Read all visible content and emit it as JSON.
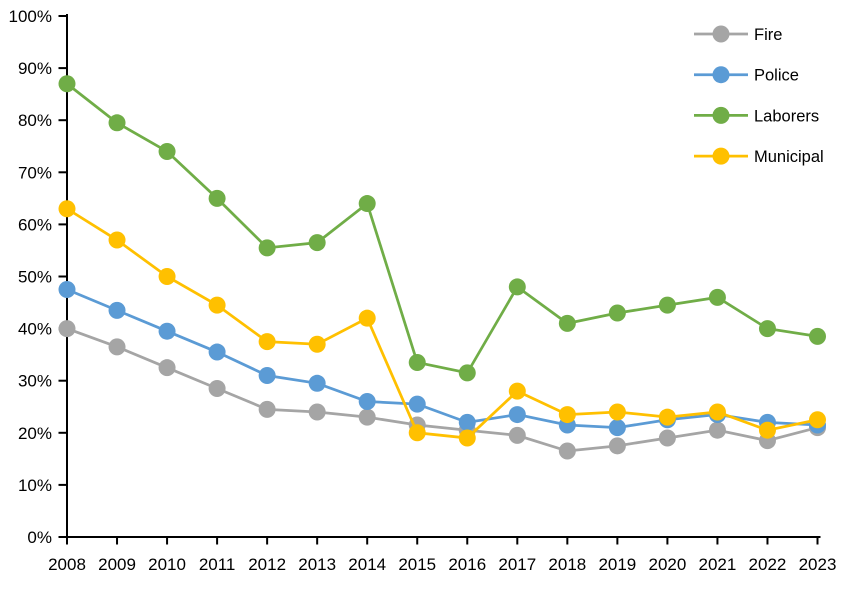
{
  "chart_data": {
    "type": "line",
    "title": "",
    "xlabel": "",
    "ylabel": "",
    "categories": [
      "2008",
      "2009",
      "2010",
      "2011",
      "2012",
      "2013",
      "2014",
      "2015",
      "2016",
      "2017",
      "2018",
      "2019",
      "2020",
      "2021",
      "2022",
      "2023"
    ],
    "series": [
      {
        "name": "Fire",
        "color": "#A5A5A5",
        "values": [
          40,
          36.5,
          32.5,
          28.5,
          24.5,
          24,
          23,
          21.5,
          20.5,
          19.5,
          16.5,
          17.5,
          19,
          20.5,
          18.5,
          21
        ]
      },
      {
        "name": "Police",
        "color": "#5B9BD5",
        "values": [
          47.5,
          43.5,
          39.5,
          35.5,
          31,
          29.5,
          26,
          25.5,
          22,
          23.5,
          21.5,
          21,
          22.5,
          23.5,
          22,
          21.5
        ]
      },
      {
        "name": "Laborers",
        "color": "#70AD47",
        "values": [
          87,
          79.5,
          74,
          65,
          55.5,
          56.5,
          64,
          33.5,
          31.5,
          48,
          41,
          43,
          44.5,
          46,
          40,
          38.5
        ]
      },
      {
        "name": "Municipal",
        "color": "#FFC000",
        "values": [
          63,
          57,
          50,
          44.5,
          37.5,
          37,
          42,
          20,
          19,
          28,
          23.5,
          24,
          23,
          24,
          20.5,
          22.5
        ]
      }
    ],
    "ylim": [
      0,
      100
    ],
    "y_tick_step": 10,
    "y_tick_labels": [
      "0%",
      "10%",
      "20%",
      "30%",
      "40%",
      "50%",
      "60%",
      "70%",
      "80%",
      "90%",
      "100%"
    ],
    "grid": false,
    "legend_position": "top-right",
    "legend_entries": [
      "Fire",
      "Police",
      "Laborers",
      "Municipal"
    ],
    "axis_color": "#000000",
    "marker": "circle"
  }
}
